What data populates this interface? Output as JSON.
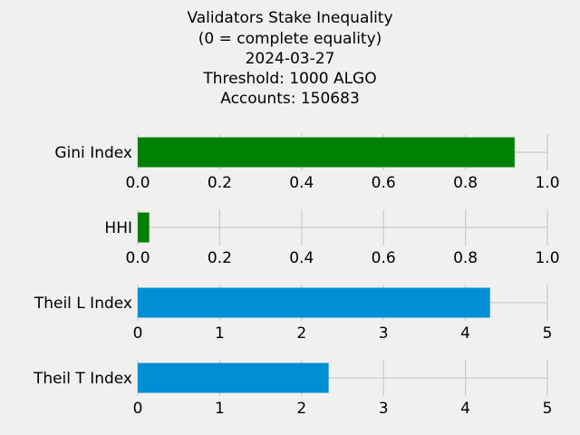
{
  "chart_data": {
    "type": "bar",
    "orientation": "horizontal",
    "title_lines": [
      "Validators Stake Inequality",
      "(0 = complete equality)",
      "2024-03-27",
      "Threshold: 1000 ALGO",
      "Accounts: 150683"
    ],
    "grid": true,
    "panels": [
      {
        "category": "Gini Index",
        "value": 0.92,
        "color": "#008000",
        "xlim": [
          0,
          1.0
        ],
        "ticks": [
          "0.0",
          "0.2",
          "0.4",
          "0.6",
          "0.8",
          "1.0"
        ]
      },
      {
        "category": "HHI",
        "value": 0.028,
        "color": "#008000",
        "xlim": [
          0,
          1.0
        ],
        "ticks": [
          "0.0",
          "0.2",
          "0.4",
          "0.6",
          "0.8",
          "1.0"
        ]
      },
      {
        "category": "Theil L Index",
        "value": 4.3,
        "color": "#008fd5",
        "xlim": [
          0,
          5
        ],
        "ticks": [
          "0",
          "1",
          "2",
          "3",
          "4",
          "5"
        ]
      },
      {
        "category": "Theil T Index",
        "value": 2.33,
        "color": "#008fd5",
        "xlim": [
          0,
          5
        ],
        "ticks": [
          "0",
          "1",
          "2",
          "3",
          "4",
          "5"
        ]
      }
    ]
  }
}
